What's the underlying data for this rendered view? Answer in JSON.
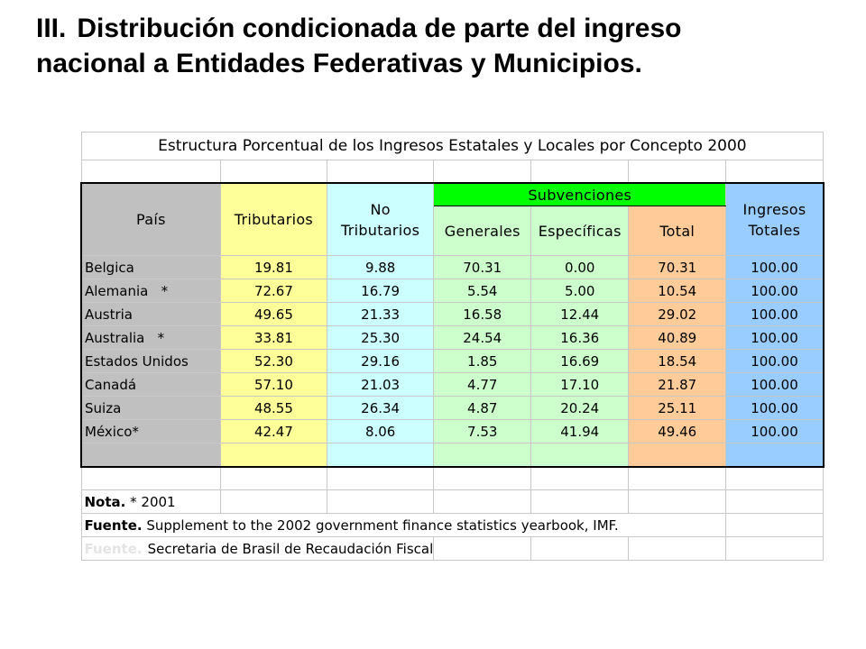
{
  "slide": {
    "numeral": "III.",
    "title_line1": "Distribución condicionada de parte del ingreso",
    "title_line2": "nacional a Entidades Federativas y Municipios."
  },
  "table": {
    "title": "Estructura Porcentual de los Ingresos Estatales y Locales por Concepto 2000",
    "headers": {
      "pais": "País",
      "tributarios": "Tributarios",
      "no_tributarios_1": "No",
      "no_tributarios_2": "Tributarios",
      "subvenciones": "Subvenciones",
      "generales": "Generales",
      "especificas": "Específicas",
      "total": "Total",
      "ingresos_1": "Ingresos",
      "ingresos_2": "Totales"
    },
    "rows": [
      {
        "pais": "Belgica",
        "tributarios": "19.81",
        "no_tributarios": "9.88",
        "generales": "70.31",
        "especificas": "0.00",
        "total": "70.31",
        "ingresos": "100.00"
      },
      {
        "pais": "Alemania   *",
        "tributarios": "72.67",
        "no_tributarios": "16.79",
        "generales": "5.54",
        "especificas": "5.00",
        "total": "10.54",
        "ingresos": "100.00"
      },
      {
        "pais": "Austria",
        "tributarios": "49.65",
        "no_tributarios": "21.33",
        "generales": "16.58",
        "especificas": "12.44",
        "total": "29.02",
        "ingresos": "100.00"
      },
      {
        "pais": "Australia   *",
        "tributarios": "33.81",
        "no_tributarios": "25.30",
        "generales": "24.54",
        "especificas": "16.36",
        "total": "40.89",
        "ingresos": "100.00"
      },
      {
        "pais": "Estados Unidos",
        "tributarios": "52.30",
        "no_tributarios": "29.16",
        "generales": "1.85",
        "especificas": "16.69",
        "total": "18.54",
        "ingresos": "100.00"
      },
      {
        "pais": "Canadá",
        "tributarios": "57.10",
        "no_tributarios": "21.03",
        "generales": "4.77",
        "especificas": "17.10",
        "total": "21.87",
        "ingresos": "100.00"
      },
      {
        "pais": "Suiza",
        "tributarios": "48.55",
        "no_tributarios": "26.34",
        "generales": "4.87",
        "especificas": "20.24",
        "total": "25.11",
        "ingresos": "100.00"
      },
      {
        "pais": "México*",
        "tributarios": "42.47",
        "no_tributarios": "8.06",
        "generales": "7.53",
        "especificas": "41.94",
        "total": "49.46",
        "ingresos": "100.00"
      }
    ],
    "notes": {
      "nota_label": "Nota.",
      "nota_text": " * 2001",
      "fuente_label": "Fuente.",
      "fuente_text": " Supplement to the 2002 government finance statistics yearbook, IMF.",
      "fuente2_label": "Fuente.",
      "fuente2_text": "Secretaria de Brasil de Recaudación Fiscal"
    }
  }
}
